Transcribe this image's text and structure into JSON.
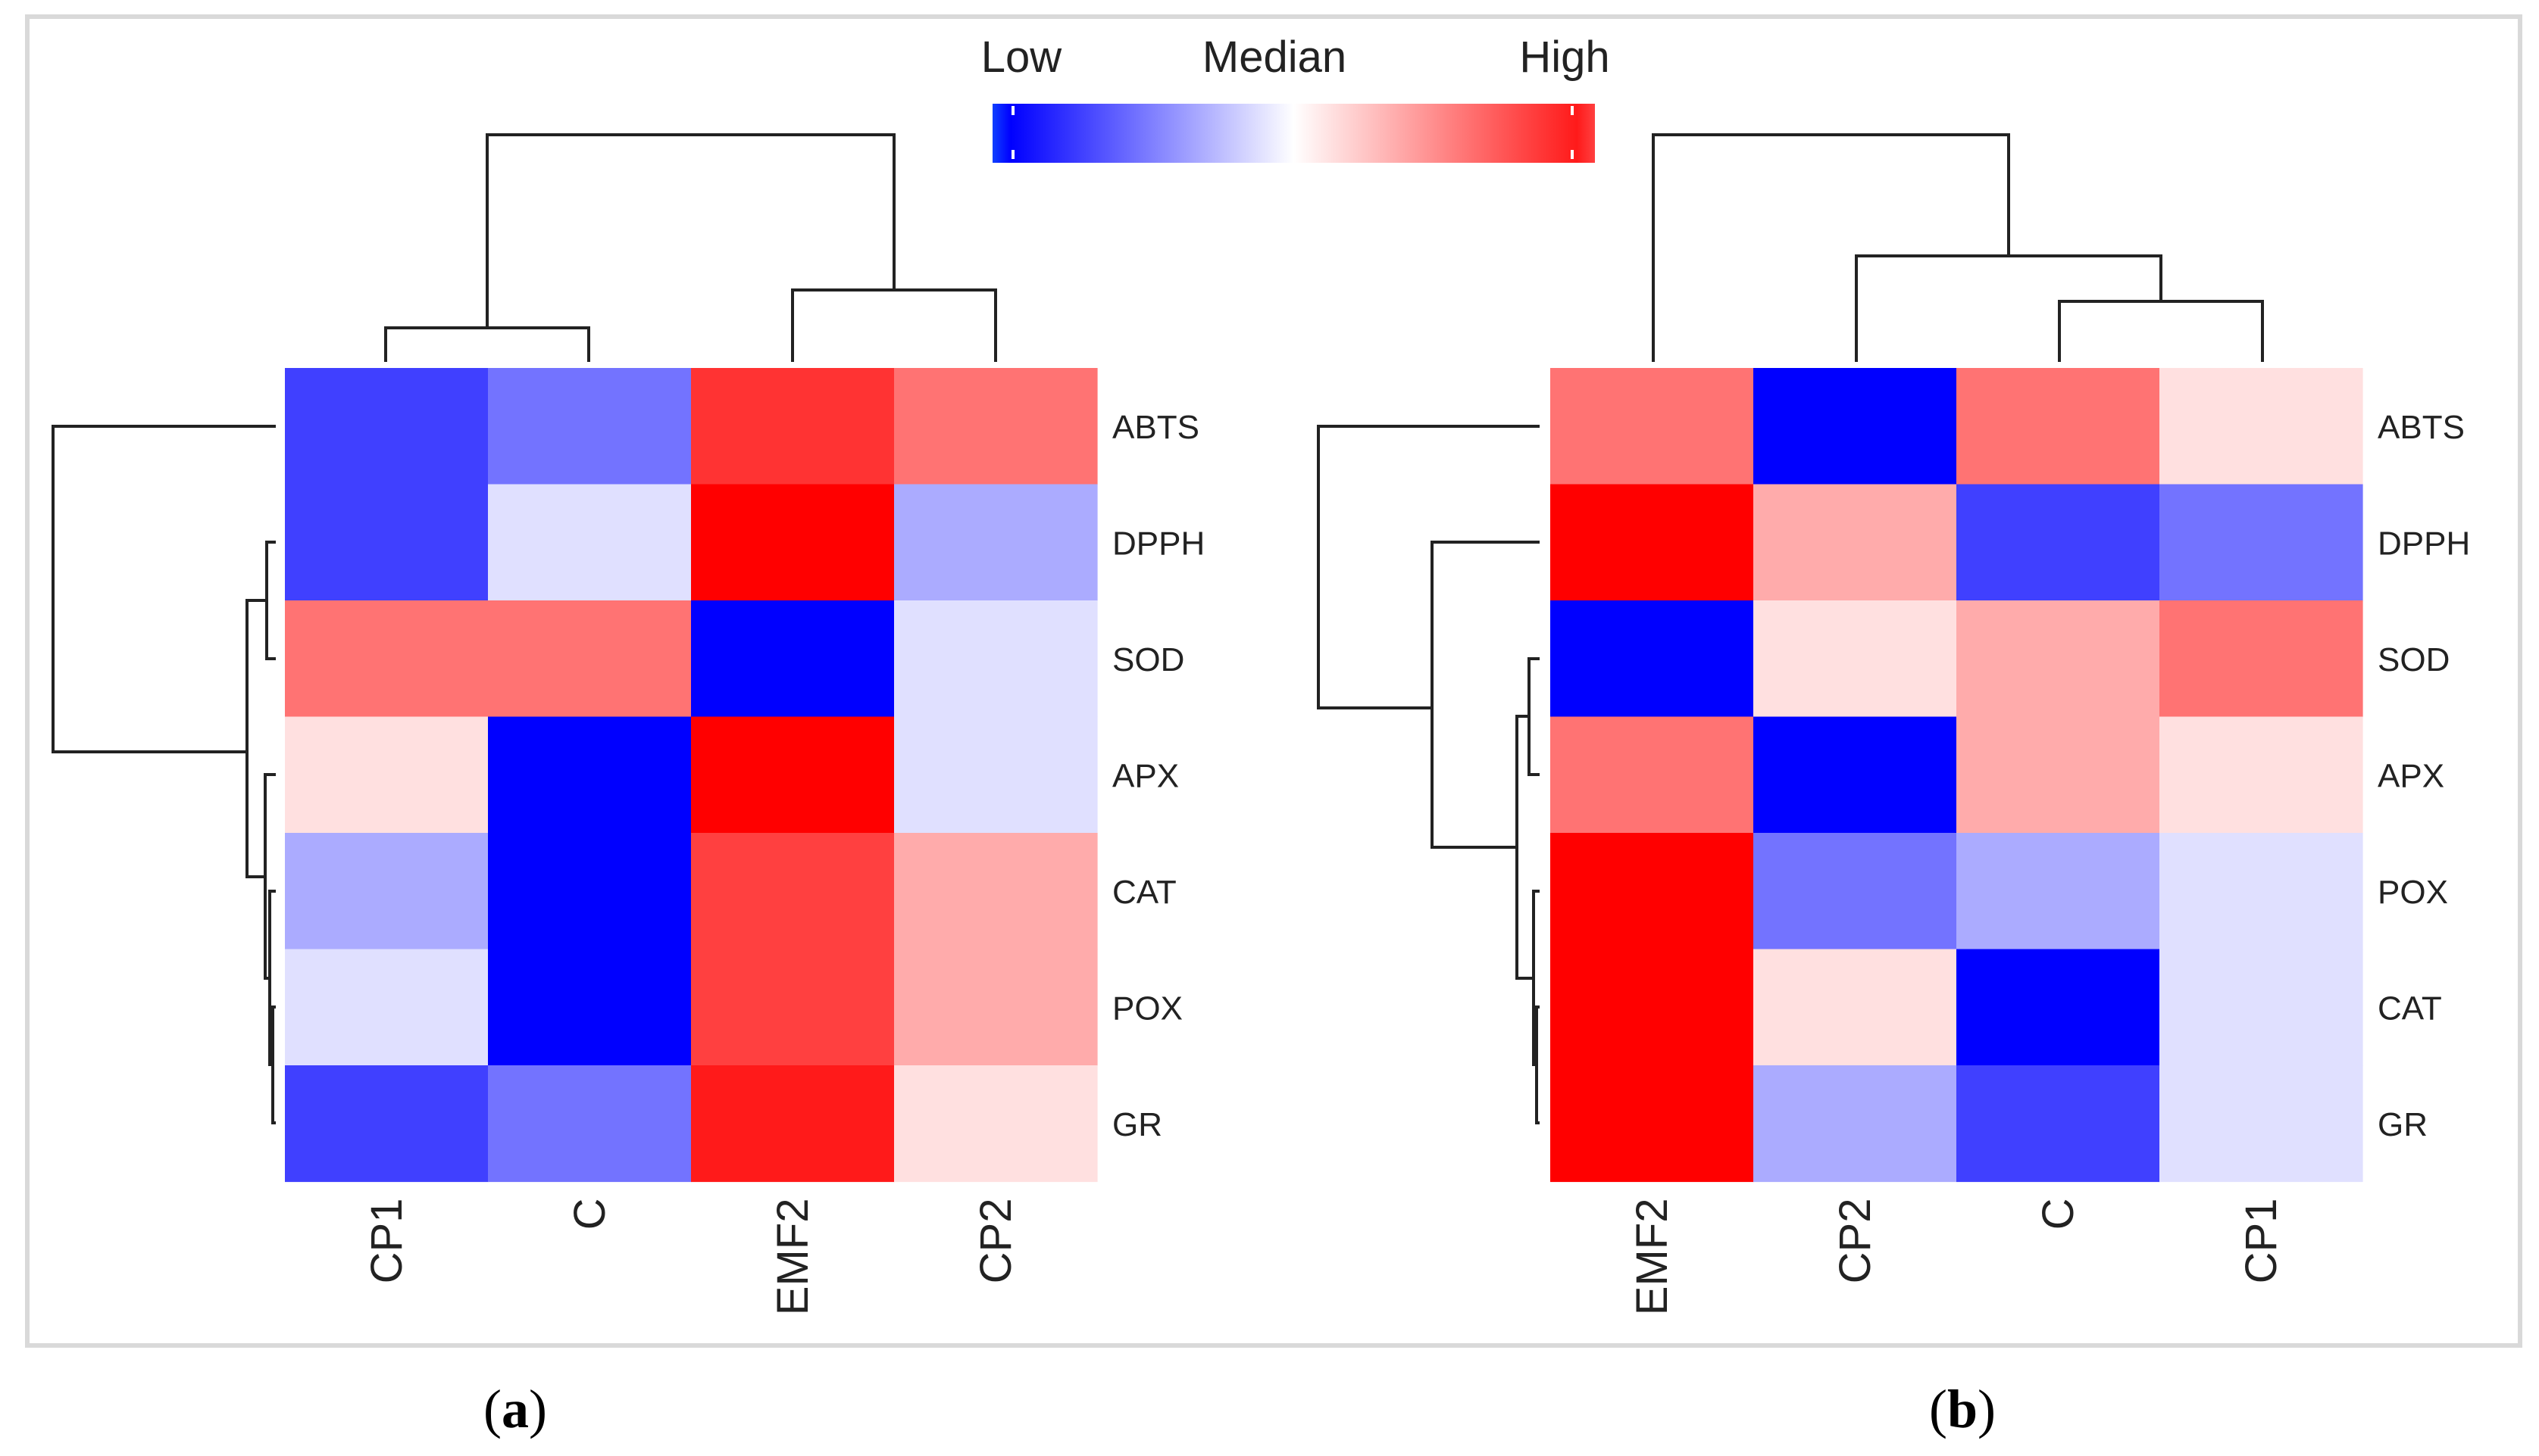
{
  "legend": {
    "low": "Low",
    "median": "Median",
    "high": "High",
    "colors": [
      "#0000ff",
      "#ffffff",
      "#ff0000"
    ]
  },
  "panels": {
    "a": {
      "open": "(",
      "letter": "a",
      "close": ")"
    },
    "b": {
      "open": "(",
      "letter": "b",
      "close": ")"
    }
  },
  "chart_data": [
    {
      "type": "heatmap",
      "panel": "a",
      "title": "",
      "color_scale": [
        "Low",
        "Median",
        "High"
      ],
      "columns": [
        "CP1",
        "C",
        "EMF2",
        "CP2"
      ],
      "rows": [
        "ABTS",
        "DPPH",
        "SOD",
        "APX",
        "CAT",
        "POX",
        "GR"
      ],
      "values": [
        [
          -0.75,
          -0.55,
          0.8,
          0.55
        ],
        [
          -0.75,
          -0.12,
          1.0,
          -0.33
        ],
        [
          0.55,
          0.55,
          -1.0,
          -0.12
        ],
        [
          0.12,
          -1.0,
          1.0,
          -0.12
        ],
        [
          -0.33,
          -1.0,
          0.75,
          0.33
        ],
        [
          -0.12,
          -1.0,
          0.75,
          0.33
        ],
        [
          -0.75,
          -0.55,
          0.9,
          0.12
        ]
      ],
      "value_range": [
        -1,
        1
      ],
      "column_order_note": "dendrogram groups (CP1, C) and (EMF2, CP2)"
    },
    {
      "type": "heatmap",
      "panel": "b",
      "title": "",
      "color_scale": [
        "Low",
        "Median",
        "High"
      ],
      "columns": [
        "EMF2",
        "CP2",
        "C",
        "CP1"
      ],
      "rows": [
        "ABTS",
        "DPPH",
        "SOD",
        "APX",
        "POX",
        "CAT",
        "GR"
      ],
      "values": [
        [
          0.55,
          -1.0,
          0.55,
          0.12
        ],
        [
          1.0,
          0.33,
          -0.75,
          -0.55
        ],
        [
          -1.0,
          0.12,
          0.33,
          0.55
        ],
        [
          0.55,
          -1.0,
          0.33,
          0.12
        ],
        [
          1.0,
          -0.55,
          -0.33,
          -0.12
        ],
        [
          1.0,
          0.12,
          -1.0,
          -0.12
        ],
        [
          1.0,
          -0.33,
          -0.75,
          -0.12
        ]
      ],
      "value_range": [
        -1,
        1
      ],
      "column_order_note": "dendrogram groups EMF2 | (CP2, (C, CP1))"
    }
  ]
}
